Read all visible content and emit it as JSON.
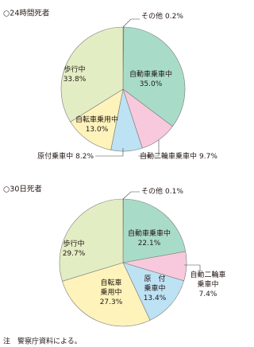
{
  "chart_data": [
    {
      "type": "pie",
      "title": "○24時間死者",
      "categories": [
        "その他",
        "自動車乗車中",
        "自動二輪車乗車中",
        "原付乗車中",
        "自転車乗用中",
        "歩行中"
      ],
      "values": [
        0.2,
        35.0,
        9.7,
        8.2,
        13.0,
        33.8
      ],
      "value_labels": [
        "0.2%",
        "35.0%",
        "9.7%",
        "8.2%",
        "13.0%",
        "33.8%"
      ],
      "colors": [
        "#ffffff",
        "#a9dcc8",
        "#f8c9dc",
        "#bde2f3",
        "#fdf3bb",
        "#e3edc4"
      ]
    },
    {
      "type": "pie",
      "title": "○30日死者",
      "categories": [
        "その他",
        "自動車乗車中",
        "自動二輪車\n乗車中",
        "原　付\n乗車中",
        "自転車\n乗用中",
        "歩行中"
      ],
      "values": [
        0.1,
        22.1,
        7.4,
        13.4,
        27.3,
        29.7
      ],
      "value_labels": [
        "0.1%",
        "22.1%",
        "7.4%",
        "13.4%",
        "27.3%",
        "29.7%"
      ],
      "colors": [
        "#ffffff",
        "#a9dcc8",
        "#f8c9dc",
        "#bde2f3",
        "#fdf3bb",
        "#e3edc4"
      ]
    }
  ],
  "note": "注　警察庁資料による。"
}
